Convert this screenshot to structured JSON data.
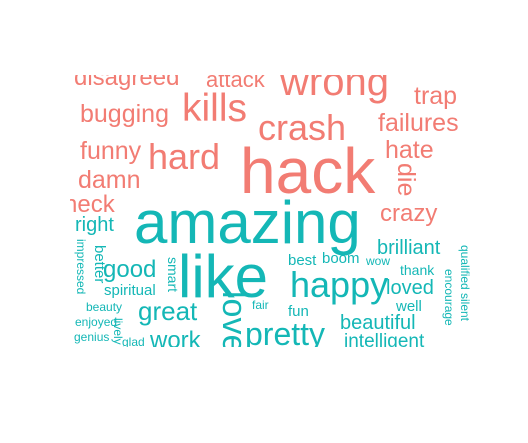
{
  "colors": {
    "negative": "#f27c73",
    "positive": "#14b7b6",
    "background": "#ffffff"
  },
  "cloud": {
    "negative": [
      "disagreed",
      "attack",
      "wrong",
      "trap",
      "bugging",
      "kills",
      "crash",
      "failures",
      "funny",
      "hard",
      "hack",
      "hate",
      "damn",
      "die",
      "neck",
      "crazy"
    ],
    "positive": [
      "amazing",
      "right",
      "brilliant",
      "qualified",
      "silent",
      "like",
      "impressed",
      "better",
      "good",
      "smart",
      "best",
      "boom",
      "wow",
      "thank",
      "happy",
      "spiritual",
      "loved",
      "encourage",
      "beauty",
      "great",
      "love",
      "fair",
      "well",
      "enjoyed",
      "fun",
      "lively",
      "beautiful",
      "genius",
      "glad",
      "work",
      "pretty",
      "intelligent"
    ]
  }
}
